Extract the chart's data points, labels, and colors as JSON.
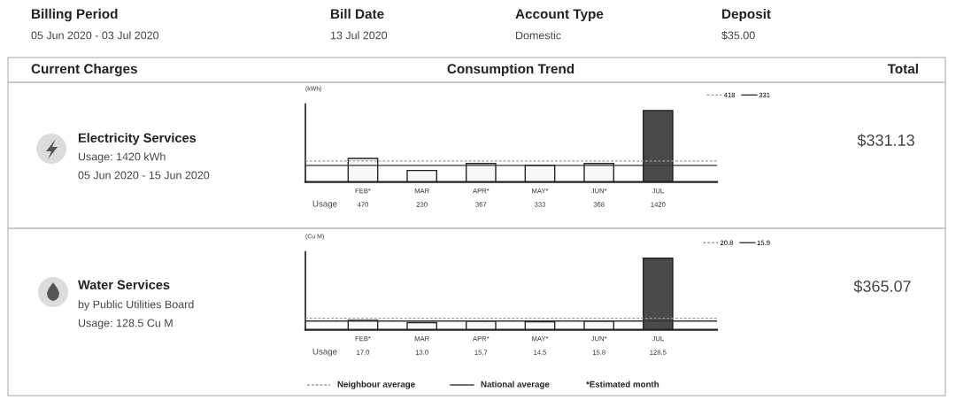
{
  "chart_data": [
    {
      "type": "bar",
      "ylabel": "(kWh)",
      "categories": [
        "FEB*",
        "MAR",
        "APR*",
        "MAY*",
        "JUN*",
        "JUL"
      ],
      "values": [
        470,
        230,
        367,
        333,
        368,
        1420
      ],
      "colors": [
        "#f8f8f8",
        "#f8f8f8",
        "#f8f8f8",
        "#f8f8f8",
        "#f8f8f8",
        "#4a4a4a"
      ],
      "tick_labels": "x",
      "data_labels": true,
      "legend": "top right",
      "ref_lines": [
        {
          "axis": "y",
          "value": 418,
          "label": "418",
          "line_style": "dashed",
          "color": "#9a9a9a"
        },
        {
          "axis": "y",
          "value": 331,
          "label": "331",
          "line_style": "solid",
          "color": "#333333"
        }
      ],
      "annotations": [
        "Billing Period",
        "05 Jun 2020 - 03 Jul 2020",
        "Bill Date",
        "13 Jul 2020",
        "Account Type",
        "Domestic",
        "Deposit",
        "$35.00",
        "Current Charges",
        "Consumption Trend",
        "Total",
        "Electricity Services",
        "Usage: 1420 kWh",
        "05 Jun 2020 - 15 Jun 2020",
        "$331.13",
        "Usage"
      ]
    },
    {
      "type": "bar",
      "ylabel": "(Cu M)",
      "categories": [
        "FEB*",
        "MAR",
        "APR*",
        "MAY*",
        "JUN*",
        "JUL"
      ],
      "values": [
        17.0,
        13.0,
        15.7,
        14.5,
        15.8,
        128.5
      ],
      "value_labels": [
        "17.0",
        "13.0",
        "15.7",
        "14.5",
        "15.8",
        "128.5"
      ],
      "colors": [
        "#f8f8f8",
        "#f8f8f8",
        "#f8f8f8",
        "#f8f8f8",
        "#f8f8f8",
        "#4a4a4a"
      ],
      "tick_labels": "x",
      "legend": "top right",
      "ref_lines": [
        {
          "axis": "y",
          "value": 20.8,
          "label": "20.8",
          "line_style": "dashed",
          "color": "#9a9a9a"
        },
        {
          "axis": "y",
          "value": 15.9,
          "label": "15.9",
          "line_style": "solid",
          "color": "#333333"
        }
      ],
      "annotations": [
        "Water Services",
        "by Public Utilities Board",
        "Usage: 128.5 Cu M",
        "$365.07",
        "Usage",
        "Neighbour average",
        "National average",
        "*Estimated month"
      ]
    }
  ]
}
